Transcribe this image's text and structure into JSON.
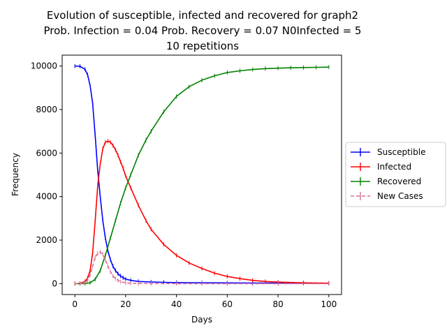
{
  "chart_data": {
    "type": "line",
    "title_lines": [
      "Evolution of susceptible, infected and recovered for graph2",
      "Prob. Infection = 0.04   Prob. Recovery = 0.07  N0Infected = 5",
      "10 repetitions"
    ],
    "xlabel": "Days",
    "ylabel": "Frequency",
    "xlim": [
      -5,
      105
    ],
    "ylim": [
      -500,
      10500
    ],
    "xticks": [
      0,
      20,
      40,
      60,
      80,
      100
    ],
    "yticks": [
      0,
      2000,
      4000,
      6000,
      8000,
      10000
    ],
    "legend_position": "center-right (outside)",
    "series": [
      {
        "name": "Susceptible",
        "color": "#0000ff",
        "dash": "solid",
        "x": [
          0,
          2,
          4,
          5,
          6,
          7,
          8,
          9,
          10,
          11,
          12,
          13,
          14,
          15,
          16,
          17,
          18,
          19,
          20,
          22,
          25,
          30,
          35,
          40,
          50,
          60,
          70,
          80,
          90,
          100
        ],
        "values": [
          9995,
          9990,
          9850,
          9600,
          9100,
          8300,
          6800,
          5200,
          4000,
          2900,
          2100,
          1500,
          1100,
          800,
          600,
          450,
          350,
          270,
          210,
          150,
          100,
          75,
          60,
          50,
          40,
          35,
          30,
          25,
          22,
          20
        ]
      },
      {
        "name": "Infected",
        "color": "#ff0000",
        "dash": "solid",
        "x": [
          0,
          2,
          4,
          5,
          6,
          7,
          8,
          9,
          10,
          11,
          12,
          13,
          14,
          15,
          16,
          17,
          18,
          19,
          20,
          22,
          25,
          28,
          30,
          35,
          40,
          45,
          50,
          55,
          60,
          65,
          70,
          75,
          80,
          90,
          100
        ],
        "values": [
          5,
          15,
          100,
          250,
          600,
          1400,
          2900,
          4500,
          5500,
          6200,
          6500,
          6550,
          6500,
          6350,
          6150,
          5900,
          5600,
          5300,
          4950,
          4400,
          3600,
          2900,
          2500,
          1800,
          1300,
          950,
          700,
          480,
          330,
          230,
          150,
          100,
          70,
          40,
          20
        ]
      },
      {
        "name": "Recovered",
        "color": "#008000",
        "dash": "solid",
        "x": [
          0,
          2,
          4,
          6,
          8,
          10,
          12,
          14,
          16,
          18,
          20,
          22,
          25,
          28,
          30,
          35,
          40,
          45,
          50,
          55,
          60,
          65,
          70,
          75,
          80,
          85,
          90,
          95,
          100
        ],
        "values": [
          0,
          0,
          5,
          40,
          200,
          600,
          1300,
          2100,
          2900,
          3700,
          4400,
          5000,
          5900,
          6600,
          7000,
          7900,
          8600,
          9050,
          9350,
          9550,
          9700,
          9780,
          9840,
          9880,
          9900,
          9920,
          9930,
          9940,
          9950
        ]
      },
      {
        "name": "New Cases",
        "color": "#db7093",
        "dash": "dashed",
        "x": [
          0,
          2,
          4,
          5,
          6,
          7,
          8,
          9,
          10,
          11,
          12,
          13,
          14,
          15,
          16,
          17,
          18,
          20,
          22,
          25,
          30,
          40,
          50,
          60,
          80,
          100
        ],
        "values": [
          0,
          5,
          50,
          150,
          400,
          800,
          1200,
          1400,
          1450,
          1350,
          1100,
          800,
          550,
          350,
          230,
          150,
          90,
          40,
          20,
          8,
          3,
          1,
          0,
          0,
          0,
          0
        ]
      }
    ]
  }
}
